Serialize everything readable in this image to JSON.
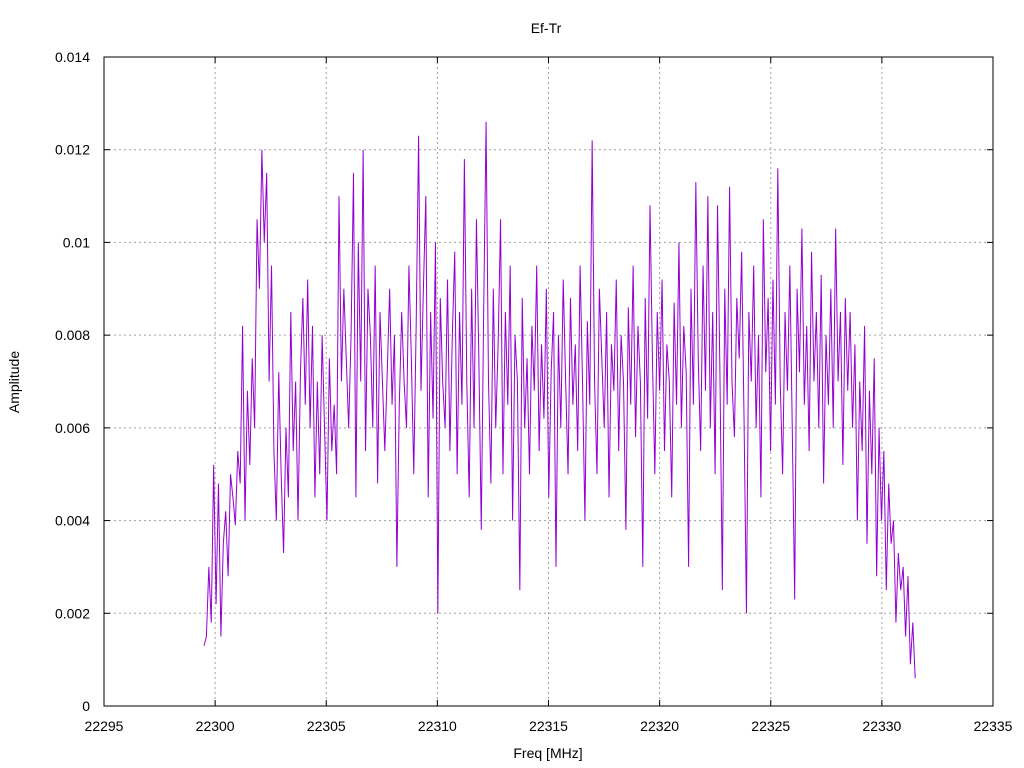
{
  "chart_data": {
    "type": "line",
    "title": "Ef-Tr",
    "xlabel": "Freq [MHz]",
    "ylabel": "Amplitude",
    "xlim": [
      22295,
      22335
    ],
    "ylim": [
      0,
      0.014
    ],
    "x_ticks": [
      "22295",
      "22300",
      "22305",
      "22310",
      "22315",
      "22320",
      "22325",
      "22330",
      "22335"
    ],
    "y_ticks": [
      "0",
      "0.002",
      "0.004",
      "0.006",
      "0.008",
      "0.01",
      "0.012",
      "0.014"
    ],
    "grid": true,
    "legend": "none",
    "series": [
      {
        "color": "#9400d3",
        "x_start": 22299.5,
        "x_end": 22331.5,
        "values": [
          0.0013,
          0.0015,
          0.003,
          0.0018,
          0.0052,
          0.0022,
          0.0048,
          0.0015,
          0.0035,
          0.0042,
          0.0028,
          0.005,
          0.0045,
          0.0039,
          0.0055,
          0.0048,
          0.0082,
          0.004,
          0.0068,
          0.0052,
          0.0075,
          0.006,
          0.0105,
          0.009,
          0.012,
          0.01,
          0.0115,
          0.007,
          0.0095,
          0.0055,
          0.004,
          0.0072,
          0.005,
          0.0033,
          0.006,
          0.0045,
          0.0085,
          0.0055,
          0.007,
          0.004,
          0.0072,
          0.0088,
          0.0065,
          0.0092,
          0.006,
          0.0082,
          0.0045,
          0.007,
          0.005,
          0.008,
          0.006,
          0.004,
          0.0075,
          0.0055,
          0.0065,
          0.005,
          0.011,
          0.007,
          0.009,
          0.0075,
          0.006,
          0.008,
          0.0115,
          0.0045,
          0.01,
          0.007,
          0.012,
          0.0055,
          0.009,
          0.008,
          0.006,
          0.0095,
          0.0048,
          0.0085,
          0.007,
          0.0055,
          0.0072,
          0.009,
          0.0065,
          0.008,
          0.003,
          0.0065,
          0.0085,
          0.007,
          0.006,
          0.0095,
          0.0075,
          0.005,
          0.0082,
          0.0123,
          0.0068,
          0.009,
          0.011,
          0.0045,
          0.0085,
          0.0062,
          0.01,
          0.002,
          0.0088,
          0.007,
          0.006,
          0.0092,
          0.0055,
          0.008,
          0.0098,
          0.005,
          0.0085,
          0.0065,
          0.0118,
          0.007,
          0.0045,
          0.009,
          0.006,
          0.0105,
          0.0075,
          0.0038,
          0.0085,
          0.0126,
          0.007,
          0.0048,
          0.009,
          0.006,
          0.0078,
          0.0105,
          0.005,
          0.0085,
          0.0065,
          0.0095,
          0.004,
          0.008,
          0.007,
          0.0025,
          0.0088,
          0.006,
          0.0075,
          0.005,
          0.0082,
          0.0068,
          0.0095,
          0.0055,
          0.0078,
          0.0062,
          0.009,
          0.0045,
          0.0072,
          0.0085,
          0.003,
          0.008,
          0.006,
          0.0092,
          0.007,
          0.005,
          0.0088,
          0.0065,
          0.0078,
          0.0055,
          0.0095,
          0.007,
          0.004,
          0.0083,
          0.0065,
          0.0122,
          0.007,
          0.005,
          0.009,
          0.0075,
          0.006,
          0.0085,
          0.0045,
          0.0078,
          0.0068,
          0.0092,
          0.0055,
          0.008,
          0.007,
          0.0038,
          0.0086,
          0.0065,
          0.0095,
          0.0058,
          0.0082,
          0.007,
          0.003,
          0.0088,
          0.0062,
          0.0108,
          0.0075,
          0.005,
          0.0085,
          0.0068,
          0.0092,
          0.0055,
          0.0078,
          0.007,
          0.0045,
          0.0087,
          0.0065,
          0.01,
          0.006,
          0.0082,
          0.0072,
          0.003,
          0.009,
          0.0065,
          0.0113,
          0.0075,
          0.0055,
          0.0095,
          0.0068,
          0.011,
          0.006,
          0.0085,
          0.005,
          0.0108,
          0.0072,
          0.0025,
          0.009,
          0.0065,
          0.0112,
          0.007,
          0.0058,
          0.0088,
          0.0075,
          0.0098,
          0.0062,
          0.002,
          0.0085,
          0.007,
          0.0095,
          0.006,
          0.008,
          0.0045,
          0.0105,
          0.0072,
          0.0088,
          0.0055,
          0.0092,
          0.0065,
          0.0116,
          0.007,
          0.005,
          0.0085,
          0.0068,
          0.0095,
          0.006,
          0.0023,
          0.009,
          0.0072,
          0.0103,
          0.0065,
          0.0082,
          0.0055,
          0.0098,
          0.007,
          0.0085,
          0.006,
          0.0093,
          0.0048,
          0.008,
          0.0065,
          0.009,
          0.006,
          0.0103,
          0.007,
          0.0085,
          0.0052,
          0.0088,
          0.0068,
          0.0085,
          0.006,
          0.0078,
          0.004,
          0.007,
          0.0055,
          0.0082,
          0.0035,
          0.0068,
          0.005,
          0.0075,
          0.0028,
          0.006,
          0.004,
          0.0055,
          0.0025,
          0.0048,
          0.0035,
          0.004,
          0.0018,
          0.0033,
          0.0025,
          0.003,
          0.0015,
          0.0028,
          0.0009,
          0.0018,
          0.0006
        ]
      }
    ]
  }
}
